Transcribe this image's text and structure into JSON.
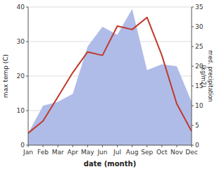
{
  "chart_data": {
    "type": "line",
    "xlabel": "date (month)",
    "ylabel": "max temp (C)",
    "y2label": "med. precipitation\n(kg/m2)",
    "categories": [
      "Jan",
      "Feb",
      "Mar",
      "Apr",
      "May",
      "Jun",
      "Jul",
      "Aug",
      "Sep",
      "Oct",
      "Nov",
      "Dec"
    ],
    "series": [
      {
        "type": "area",
        "axis": "y2",
        "color": "#b0bce8",
        "values": [
          3.0,
          10.0,
          11.0,
          13.0,
          25.0,
          30.0,
          28.0,
          34.5,
          19.0,
          20.5,
          20.0,
          11.0
        ]
      },
      {
        "type": "line",
        "color": "#c0392b",
        "values": [
          3.5,
          7.0,
          14.0,
          21.0,
          27.0,
          26.0,
          34.5,
          33.5,
          37.0,
          26.0,
          12.0,
          4.0
        ]
      }
    ],
    "ylim": [
      0,
      40
    ],
    "yticks": [
      0,
      10,
      20,
      30,
      40
    ],
    "y2lim": [
      0,
      35
    ],
    "y2ticks": [
      0,
      5,
      10,
      15,
      20,
      25,
      30,
      35
    ],
    "grid": true
  }
}
